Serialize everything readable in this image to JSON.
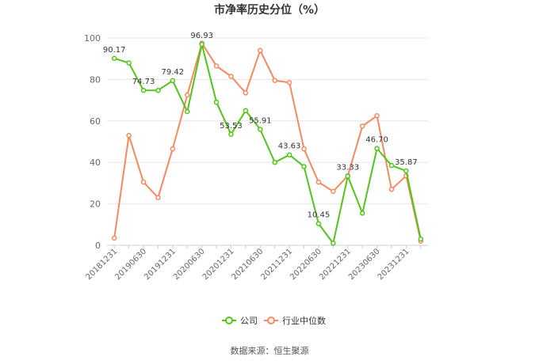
{
  "chart_data": {
    "type": "line",
    "title": "市净率历史分位（%）",
    "xlabel": "",
    "ylabel": "",
    "ylim": [
      0,
      100
    ],
    "yticks": [
      0,
      20,
      40,
      60,
      80,
      100
    ],
    "grid": true,
    "legend_position": "bottom",
    "categories": [
      "20181231",
      "",
      "20190630",
      "",
      "20191231",
      "",
      "20200630",
      "",
      "20201231",
      "",
      "20210630",
      "",
      "20211231",
      "",
      "20220630",
      "",
      "20221231",
      "",
      "20230630",
      "",
      "20231231",
      ""
    ],
    "series": [
      {
        "name": "公司",
        "color": "#52c41a",
        "values": [
          90.17,
          88.0,
          74.73,
          74.73,
          79.42,
          64.5,
          96.93,
          69.0,
          53.53,
          65.0,
          55.91,
          40.0,
          43.63,
          38.0,
          10.45,
          1.0,
          33.33,
          15.5,
          46.7,
          38.5,
          35.87,
          3.0
        ],
        "labels": [
          "90.17",
          "",
          "74.73",
          "",
          "79.42",
          "",
          "96.93",
          "",
          "53.53",
          "",
          "55.91",
          "",
          "43.63",
          "",
          "10.45",
          "",
          "33.33",
          "",
          "46.70",
          "",
          "35.87",
          ""
        ]
      },
      {
        "name": "行业中位数",
        "color": "#f4895f",
        "values": [
          3.5,
          53.0,
          30.5,
          23.0,
          46.5,
          72.5,
          97.5,
          86.5,
          81.5,
          73.5,
          94.0,
          79.5,
          78.5,
          46.5,
          30.5,
          26.0,
          33.5,
          57.5,
          62.5,
          27.0,
          33.5,
          2.0
        ]
      }
    ]
  },
  "footer": {
    "source": "数据来源：恒生聚源"
  }
}
